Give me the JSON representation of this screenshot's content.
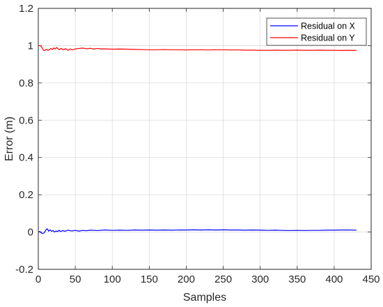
{
  "chart_data": {
    "type": "line",
    "title": "",
    "xlabel": "Samples",
    "ylabel": "Error (m)",
    "xlim": [
      0,
      450
    ],
    "ylim": [
      -0.2,
      1.2
    ],
    "xticks": [
      "0",
      "50",
      "100",
      "150",
      "200",
      "250",
      "300",
      "350",
      "400",
      "450"
    ],
    "yticks": [
      "-0.2",
      "0",
      "0.2",
      "0.4",
      "0.6",
      "0.8",
      "1",
      "1.2"
    ],
    "grid": true,
    "legend_position": "top-right",
    "series": [
      {
        "name": "Residual on X",
        "color": "#0000ff",
        "x": [
          0,
          2,
          4,
          6,
          8,
          10,
          12,
          14,
          16,
          18,
          20,
          22,
          24,
          26,
          28,
          30,
          33,
          36,
          40,
          45,
          50,
          55,
          60,
          65,
          70,
          80,
          90,
          100,
          110,
          120,
          130,
          140,
          150,
          160,
          170,
          180,
          190,
          200,
          210,
          220,
          230,
          240,
          250,
          260,
          270,
          280,
          290,
          300,
          310,
          320,
          330,
          340,
          350,
          360,
          370,
          380,
          390,
          400,
          410,
          420,
          430
        ],
        "y": [
          0.0,
          0.003,
          -0.005,
          -0.008,
          -0.004,
          0.01,
          0.018,
          0.005,
          0.012,
          0.004,
          0.008,
          0.0,
          0.006,
          0.002,
          0.01,
          0.003,
          0.008,
          0.004,
          0.01,
          0.006,
          0.009,
          0.005,
          0.009,
          0.007,
          0.01,
          0.008,
          0.011,
          0.009,
          0.01,
          0.009,
          0.011,
          0.01,
          0.011,
          0.01,
          0.011,
          0.01,
          0.011,
          0.011,
          0.012,
          0.011,
          0.012,
          0.011,
          0.012,
          0.011,
          0.011,
          0.01,
          0.011,
          0.01,
          0.009,
          0.01,
          0.009,
          0.008,
          0.009,
          0.008,
          0.009,
          0.009,
          0.01,
          0.01,
          0.011,
          0.011,
          0.01
        ]
      },
      {
        "name": "Residual on Y",
        "color": "#ff0000",
        "x": [
          0,
          3,
          5,
          7,
          9,
          11,
          13,
          15,
          17,
          19,
          21,
          23,
          25,
          28,
          31,
          34,
          37,
          40,
          43,
          46,
          50,
          55,
          60,
          65,
          70,
          75,
          80,
          85,
          90,
          100,
          110,
          120,
          130,
          140,
          150,
          160,
          170,
          180,
          190,
          200,
          210,
          220,
          230,
          240,
          250,
          260,
          270,
          280,
          290,
          300,
          310,
          320,
          330,
          340,
          350,
          360,
          370,
          380,
          390,
          400,
          410,
          420,
          430
        ],
        "y": [
          1.0,
          1.0,
          0.99,
          0.975,
          0.975,
          0.98,
          0.975,
          0.978,
          0.985,
          0.98,
          0.988,
          0.982,
          0.99,
          0.978,
          0.985,
          0.978,
          0.984,
          0.975,
          0.982,
          0.978,
          0.982,
          0.985,
          0.987,
          0.983,
          0.986,
          0.982,
          0.985,
          0.982,
          0.983,
          0.981,
          0.982,
          0.981,
          0.98,
          0.979,
          0.978,
          0.978,
          0.979,
          0.978,
          0.978,
          0.977,
          0.978,
          0.978,
          0.977,
          0.978,
          0.978,
          0.977,
          0.977,
          0.976,
          0.976,
          0.975,
          0.975,
          0.976,
          0.975,
          0.975,
          0.976,
          0.975,
          0.975,
          0.976,
          0.975,
          0.975,
          0.974,
          0.975,
          0.974
        ]
      }
    ]
  }
}
